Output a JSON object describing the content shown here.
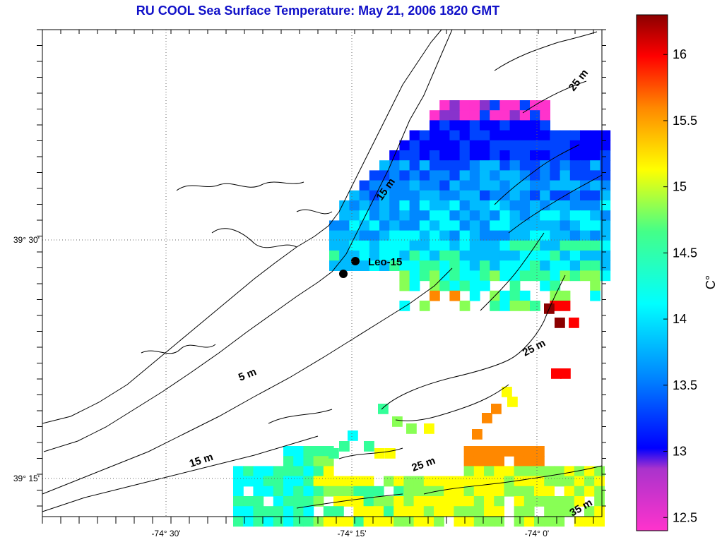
{
  "title": "RU COOL  Sea Surface Temperature:  May 21, 2006 1820 GMT",
  "axes": {
    "lon_labels": [
      "-74° 30'",
      "-74° 15'",
      "-74° 0'"
    ],
    "lat_labels": [
      "39° 30'",
      "39° 15'"
    ]
  },
  "contours": [
    "5 m",
    "15 m",
    "15 m",
    "25 m",
    "25 m",
    "25 m",
    "35 m"
  ],
  "station": {
    "label": "Leo-15"
  },
  "colorbar": {
    "unit": "C°",
    "ticks": [
      "12.5",
      "13",
      "13.5",
      "14",
      "14.5",
      "15",
      "15.5",
      "16"
    ],
    "range": [
      12.4,
      16.3
    ],
    "colors": [
      "#ff33cc",
      "#8833cc",
      "#0000ff",
      "#0088ff",
      "#00ffff",
      "#33ff88",
      "#ffff00",
      "#ff8800",
      "#ff0000",
      "#8b0000"
    ]
  }
}
